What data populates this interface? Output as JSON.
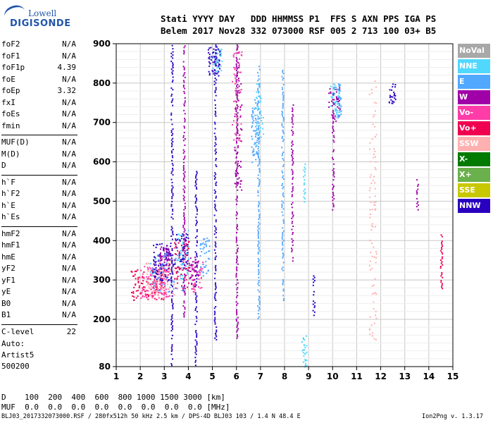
{
  "logo": {
    "line1": "Lowell",
    "line2": "DIGISONDE"
  },
  "header": {
    "labels": "Stati YYYY DAY   DDD HHMMSS P1  FFS S AXN PPS IGA PS",
    "values": "Belem 2017 Nov28 332 073000 RSF 005 2 713 100 03+ B5"
  },
  "params": [
    {
      "group": 0,
      "label": "foF2",
      "value": "N/A"
    },
    {
      "group": 0,
      "label": "foF1",
      "value": "N/A"
    },
    {
      "group": 0,
      "label": "foF1p",
      "value": "4.39"
    },
    {
      "group": 0,
      "label": "foE",
      "value": "N/A"
    },
    {
      "group": 0,
      "label": "foEp",
      "value": "3.32"
    },
    {
      "group": 0,
      "label": "fxI",
      "value": "N/A"
    },
    {
      "group": 0,
      "label": "foEs",
      "value": "N/A"
    },
    {
      "group": 0,
      "label": "fmin",
      "value": "N/A"
    },
    {
      "group": 1,
      "label": "MUF(D)",
      "value": "N/A"
    },
    {
      "group": 1,
      "label": "M(D)",
      "value": "N/A"
    },
    {
      "group": 1,
      "label": "D",
      "value": "N/A"
    },
    {
      "group": 2,
      "label": "h`F",
      "value": "N/A"
    },
    {
      "group": 2,
      "label": "h`F2",
      "value": "N/A"
    },
    {
      "group": 2,
      "label": "h`E",
      "value": "N/A"
    },
    {
      "group": 2,
      "label": "h`Es",
      "value": "N/A"
    },
    {
      "group": 3,
      "label": "hmF2",
      "value": "N/A"
    },
    {
      "group": 3,
      "label": "hmF1",
      "value": "N/A"
    },
    {
      "group": 3,
      "label": "hmE",
      "value": "N/A"
    },
    {
      "group": 3,
      "label": "yF2",
      "value": "N/A"
    },
    {
      "group": 3,
      "label": "yF1",
      "value": "N/A"
    },
    {
      "group": 3,
      "label": "yE",
      "value": "N/A"
    },
    {
      "group": 3,
      "label": "B0",
      "value": "N/A"
    },
    {
      "group": 3,
      "label": "B1",
      "value": "N/A"
    },
    {
      "group": 4,
      "label": "C-level",
      "value": "22"
    }
  ],
  "auto": {
    "line1": "Auto:",
    "line2": "Artist5",
    "line3": "500200"
  },
  "bottom": {
    "d_line": "D    100  200  400  600  800 1000 1500 3000 [km]",
    "muf_line": "MUF  0.0  0.0  0.0  0.0  0.0  0.0  0.0  0.0 [MHz]"
  },
  "footer": {
    "info": "BLJ03_2017332073000.RSF / 280fx512h 50 kHz 2.5 km / DPS-4D BLJ03 103 / 1.4 N 48.4 E",
    "version": "Ion2Png v. 1.3.17"
  },
  "legend": [
    {
      "label": "NoVal",
      "color": "#a8a8a8"
    },
    {
      "label": "NNE",
      "color": "#50d8ff"
    },
    {
      "label": "E",
      "color": "#50a8ff"
    },
    {
      "label": "W",
      "color": "#a000a8"
    },
    {
      "label": "Vo-",
      "color": "#ff3ca8"
    },
    {
      "label": "Vo+",
      "color": "#f00050"
    },
    {
      "label": "SSW",
      "color": "#ffb0b0"
    },
    {
      "label": "X-",
      "color": "#007a00"
    },
    {
      "label": "X+",
      "color": "#6ab04c"
    },
    {
      "label": "SSE",
      "color": "#c8c800"
    },
    {
      "label": "NNW",
      "color": "#2a00c0"
    }
  ],
  "chart_data": {
    "type": "scatter",
    "x_range": [
      1,
      15
    ],
    "y_range": [
      80,
      900
    ],
    "x_ticks": [
      1,
      2,
      3,
      4,
      5,
      6,
      7,
      8,
      9,
      10,
      11,
      12,
      13,
      14,
      15
    ],
    "y_ticks": [
      80,
      200,
      300,
      400,
      500,
      600,
      700,
      800,
      900
    ],
    "grid": true,
    "legend_position": "right",
    "clusters": [
      {
        "name": "Vo+",
        "x": [
          1.6,
          3.0
        ],
        "y": [
          250,
          330
        ],
        "n": 120
      },
      {
        "name": "Vo-",
        "x": [
          2.0,
          3.2
        ],
        "y": [
          255,
          340
        ],
        "n": 120
      },
      {
        "name": "SSW",
        "x": [
          2.2,
          3.4
        ],
        "y": [
          260,
          360
        ],
        "n": 80
      },
      {
        "name": "NNW",
        "x": [
          2.5,
          3.3
        ],
        "y": [
          300,
          395
        ],
        "n": 90
      },
      {
        "name": "W",
        "x": [
          2.8,
          3.2
        ],
        "y": [
          330,
          390
        ],
        "n": 50
      },
      {
        "name": "E",
        "x": [
          2.4,
          3.9
        ],
        "y": [
          270,
          370
        ],
        "n": 80
      },
      {
        "name": "NNE",
        "x": [
          3.5,
          4.0
        ],
        "y": [
          300,
          430
        ],
        "n": 50
      },
      {
        "name": "NNW",
        "x": [
          3.4,
          4.0
        ],
        "y": [
          330,
          420
        ],
        "n": 50
      },
      {
        "name": "Vo+",
        "x": [
          3.4,
          4.0
        ],
        "y": [
          280,
          400
        ],
        "n": 60
      },
      {
        "name": "Vo-",
        "x": [
          4.1,
          4.6
        ],
        "y": [
          270,
          350
        ],
        "n": 50
      },
      {
        "name": "W",
        "x": [
          4.0,
          4.4
        ],
        "y": [
          290,
          360
        ],
        "n": 40
      },
      {
        "name": "E",
        "x": [
          4.4,
          4.9
        ],
        "y": [
          300,
          410
        ],
        "n": 40
      },
      {
        "name": "NNW",
        "x": [
          4.8,
          5.3
        ],
        "y": [
          820,
          895
        ],
        "n": 60
      },
      {
        "name": "NNE",
        "x": [
          5.0,
          5.4
        ],
        "y": [
          830,
          890
        ],
        "n": 30
      },
      {
        "name": "Vo-",
        "x": [
          5.8,
          6.2
        ],
        "y": [
          650,
          900
        ],
        "n": 60
      },
      {
        "name": "W",
        "x": [
          5.9,
          6.2
        ],
        "y": [
          520,
          860
        ],
        "n": 50
      },
      {
        "name": "E",
        "x": [
          6.6,
          6.9
        ],
        "y": [
          600,
          760
        ],
        "n": 70
      },
      {
        "name": "NNE",
        "x": [
          6.8,
          7.1
        ],
        "y": [
          640,
          800
        ],
        "n": 40
      },
      {
        "name": "W",
        "x": [
          9.8,
          10.3
        ],
        "y": [
          700,
          790
        ],
        "n": 40
      },
      {
        "name": "NNE",
        "x": [
          9.9,
          10.3
        ],
        "y": [
          720,
          800
        ],
        "n": 50
      },
      {
        "name": "E",
        "x": [
          10.1,
          10.4
        ],
        "y": [
          710,
          800
        ],
        "n": 30
      },
      {
        "name": "SSW",
        "x": [
          11.5,
          11.8
        ],
        "y": [
          150,
          820
        ],
        "n": 90
      },
      {
        "name": "NNW",
        "x": [
          12.3,
          12.6
        ],
        "y": [
          750,
          800
        ],
        "n": 25
      },
      {
        "name": "NNE",
        "x": [
          8.7,
          8.9
        ],
        "y": [
          80,
          160
        ],
        "n": 25
      }
    ],
    "vertical_traces": [
      {
        "name": "NNW",
        "x": 3.3,
        "y": [
          85,
          900
        ]
      },
      {
        "name": "NNW",
        "x": 4.3,
        "y": [
          85,
          580
        ]
      },
      {
        "name": "W",
        "x": 3.8,
        "y": [
          200,
          900
        ]
      },
      {
        "name": "NNW",
        "x": 5.1,
        "y": [
          150,
          900
        ]
      },
      {
        "name": "W",
        "x": 6.0,
        "y": [
          150,
          900
        ]
      },
      {
        "name": "E",
        "x": 6.9,
        "y": [
          200,
          850
        ]
      },
      {
        "name": "E",
        "x": 7.9,
        "y": [
          250,
          840
        ]
      },
      {
        "name": "W",
        "x": 8.3,
        "y": [
          350,
          750
        ]
      },
      {
        "name": "NNW",
        "x": 9.2,
        "y": [
          200,
          320
        ]
      },
      {
        "name": "W",
        "x": 10.0,
        "y": [
          480,
          780
        ]
      },
      {
        "name": "NNE",
        "x": 8.8,
        "y": [
          500,
          600
        ]
      },
      {
        "name": "W",
        "x": 13.5,
        "y": [
          480,
          560
        ]
      },
      {
        "name": "Vo+",
        "x": 14.5,
        "y": [
          280,
          420
        ]
      }
    ]
  }
}
